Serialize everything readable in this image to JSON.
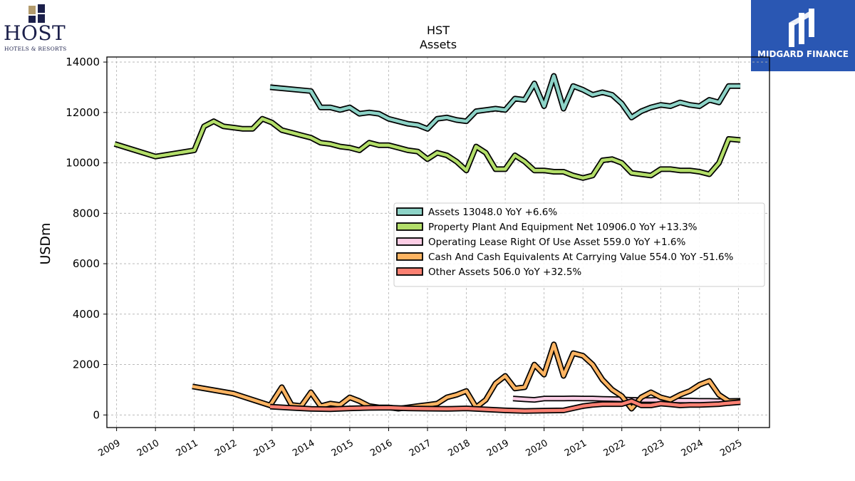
{
  "logos": {
    "left_brand": "HOST",
    "left_tagline": "HOTELS & RESORTS",
    "right_brand": "MIDGARD FINANCE"
  },
  "chart_data": {
    "type": "line",
    "title": "HST",
    "subtitle": "Assets",
    "xlabel": "",
    "ylabel": "USDm",
    "xlim": [
      2008.75,
      2025.8
    ],
    "ylim": [
      -500,
      14200
    ],
    "x_ticks": [
      "2009",
      "2010",
      "2011",
      "2012",
      "2013",
      "2014",
      "2015",
      "2016",
      "2017",
      "2018",
      "2019",
      "2020",
      "2021",
      "2022",
      "2023",
      "2024",
      "2025"
    ],
    "y_ticks": [
      0,
      2000,
      4000,
      6000,
      8000,
      10000,
      12000,
      14000
    ],
    "y_tick_labels": [
      "0",
      "2000",
      "4000",
      "6000",
      "8000",
      "10000",
      "12000",
      "14000"
    ],
    "grid": true,
    "legend_position": "center-right",
    "series": [
      {
        "name": "Assets",
        "legend": "Assets  13048.0 YoY +6.6%",
        "color": "#8dd3c7",
        "points": [
          [
            2012.95,
            13000
          ],
          [
            2014.0,
            12850
          ],
          [
            2014.25,
            12200
          ],
          [
            2014.5,
            12200
          ],
          [
            2014.75,
            12100
          ],
          [
            2015.0,
            12200
          ],
          [
            2015.25,
            11950
          ],
          [
            2015.5,
            12000
          ],
          [
            2015.75,
            11950
          ],
          [
            2016.0,
            11750
          ],
          [
            2016.25,
            11650
          ],
          [
            2016.5,
            11550
          ],
          [
            2016.75,
            11500
          ],
          [
            2017.0,
            11350
          ],
          [
            2017.25,
            11750
          ],
          [
            2017.5,
            11800
          ],
          [
            2017.75,
            11700
          ],
          [
            2018.0,
            11650
          ],
          [
            2018.25,
            12050
          ],
          [
            2018.5,
            12100
          ],
          [
            2018.75,
            12150
          ],
          [
            2019.0,
            12100
          ],
          [
            2019.25,
            12550
          ],
          [
            2019.5,
            12500
          ],
          [
            2019.75,
            13150
          ],
          [
            2020.0,
            12250
          ],
          [
            2020.25,
            13450
          ],
          [
            2020.5,
            12150
          ],
          [
            2020.75,
            13050
          ],
          [
            2021.0,
            12900
          ],
          [
            2021.25,
            12700
          ],
          [
            2021.5,
            12800
          ],
          [
            2021.75,
            12700
          ],
          [
            2022.0,
            12350
          ],
          [
            2022.25,
            11800
          ],
          [
            2022.5,
            12050
          ],
          [
            2022.75,
            12200
          ],
          [
            2023.0,
            12300
          ],
          [
            2023.25,
            12250
          ],
          [
            2023.5,
            12400
          ],
          [
            2023.75,
            12300
          ],
          [
            2024.0,
            12250
          ],
          [
            2024.25,
            12500
          ],
          [
            2024.5,
            12400
          ],
          [
            2024.75,
            13050
          ],
          [
            2025.05,
            13048
          ]
        ]
      },
      {
        "name": "Property Plant And Equipment Net",
        "legend": "Property Plant And Equipment Net  10906.0 YoY +13.3%",
        "color": "#b3de69",
        "points": [
          [
            2008.95,
            10750
          ],
          [
            2010.0,
            10250
          ],
          [
            2011.0,
            10500
          ],
          [
            2011.25,
            11450
          ],
          [
            2011.5,
            11650
          ],
          [
            2011.75,
            11450
          ],
          [
            2012.0,
            11400
          ],
          [
            2012.25,
            11350
          ],
          [
            2012.5,
            11350
          ],
          [
            2012.75,
            11750
          ],
          [
            2013.0,
            11600
          ],
          [
            2013.25,
            11300
          ],
          [
            2013.5,
            11200
          ],
          [
            2013.75,
            11100
          ],
          [
            2014.0,
            11000
          ],
          [
            2014.25,
            10800
          ],
          [
            2014.5,
            10750
          ],
          [
            2014.75,
            10650
          ],
          [
            2015.0,
            10600
          ],
          [
            2015.25,
            10500
          ],
          [
            2015.5,
            10800
          ],
          [
            2015.75,
            10700
          ],
          [
            2016.0,
            10700
          ],
          [
            2016.25,
            10600
          ],
          [
            2016.5,
            10500
          ],
          [
            2016.75,
            10450
          ],
          [
            2017.0,
            10150
          ],
          [
            2017.25,
            10400
          ],
          [
            2017.5,
            10300
          ],
          [
            2017.75,
            10050
          ],
          [
            2018.0,
            9700
          ],
          [
            2018.25,
            10650
          ],
          [
            2018.5,
            10400
          ],
          [
            2018.75,
            9750
          ],
          [
            2019.0,
            9750
          ],
          [
            2019.25,
            10300
          ],
          [
            2019.5,
            10050
          ],
          [
            2019.75,
            9700
          ],
          [
            2020.0,
            9700
          ],
          [
            2020.25,
            9650
          ],
          [
            2020.5,
            9650
          ],
          [
            2020.75,
            9500
          ],
          [
            2021.0,
            9400
          ],
          [
            2021.25,
            9500
          ],
          [
            2021.5,
            10100
          ],
          [
            2021.75,
            10150
          ],
          [
            2022.0,
            10000
          ],
          [
            2022.25,
            9600
          ],
          [
            2022.5,
            9550
          ],
          [
            2022.75,
            9500
          ],
          [
            2023.0,
            9750
          ],
          [
            2023.25,
            9750
          ],
          [
            2023.5,
            9700
          ],
          [
            2023.75,
            9700
          ],
          [
            2024.0,
            9650
          ],
          [
            2024.25,
            9550
          ],
          [
            2024.5,
            10000
          ],
          [
            2024.75,
            10950
          ],
          [
            2025.05,
            10906
          ]
        ]
      },
      {
        "name": "Operating Lease Right Of Use Asset",
        "legend": "Operating Lease Right Of Use Asset  559.0 YoY +1.6%",
        "color": "#fccde5",
        "points": [
          [
            2019.2,
            650
          ],
          [
            2019.5,
            620
          ],
          [
            2019.75,
            600
          ],
          [
            2020.0,
            650
          ],
          [
            2020.25,
            650
          ],
          [
            2020.5,
            650
          ],
          [
            2020.75,
            660
          ],
          [
            2021.0,
            650
          ],
          [
            2021.25,
            650
          ],
          [
            2021.5,
            640
          ],
          [
            2021.75,
            630
          ],
          [
            2022.0,
            620
          ],
          [
            2022.25,
            600
          ],
          [
            2022.5,
            590
          ],
          [
            2022.75,
            590
          ],
          [
            2023.0,
            600
          ],
          [
            2023.25,
            580
          ],
          [
            2023.5,
            570
          ],
          [
            2023.75,
            570
          ],
          [
            2024.0,
            560
          ],
          [
            2024.25,
            560
          ],
          [
            2024.5,
            550
          ],
          [
            2024.75,
            550
          ],
          [
            2025.05,
            559
          ]
        ]
      },
      {
        "name": "Cash And Cash Equivalents At Carrying Value",
        "legend": "Cash And Cash Equivalents At Carrying Value  554.0 YoY -51.6%",
        "color": "#fdb462",
        "points": [
          [
            2010.95,
            1130
          ],
          [
            2012.0,
            850
          ],
          [
            2012.95,
            380
          ],
          [
            2013.25,
            1100
          ],
          [
            2013.5,
            400
          ],
          [
            2013.75,
            350
          ],
          [
            2014.0,
            900
          ],
          [
            2014.25,
            350
          ],
          [
            2014.5,
            450
          ],
          [
            2014.75,
            400
          ],
          [
            2015.0,
            700
          ],
          [
            2015.25,
            550
          ],
          [
            2015.5,
            350
          ],
          [
            2015.75,
            300
          ],
          [
            2016.0,
            300
          ],
          [
            2016.25,
            250
          ],
          [
            2016.5,
            300
          ],
          [
            2016.75,
            350
          ],
          [
            2017.0,
            400
          ],
          [
            2017.25,
            450
          ],
          [
            2017.5,
            700
          ],
          [
            2017.75,
            800
          ],
          [
            2018.0,
            950
          ],
          [
            2018.25,
            300
          ],
          [
            2018.5,
            600
          ],
          [
            2018.75,
            1250
          ],
          [
            2019.0,
            1550
          ],
          [
            2019.25,
            1050
          ],
          [
            2019.5,
            1100
          ],
          [
            2019.75,
            2000
          ],
          [
            2020.0,
            1600
          ],
          [
            2020.25,
            2800
          ],
          [
            2020.5,
            1550
          ],
          [
            2020.75,
            2450
          ],
          [
            2021.0,
            2350
          ],
          [
            2021.25,
            2000
          ],
          [
            2021.5,
            1400
          ],
          [
            2021.75,
            1000
          ],
          [
            2022.0,
            750
          ],
          [
            2022.25,
            250
          ],
          [
            2022.5,
            700
          ],
          [
            2022.75,
            900
          ],
          [
            2023.0,
            700
          ],
          [
            2023.25,
            600
          ],
          [
            2023.5,
            800
          ],
          [
            2023.75,
            950
          ],
          [
            2024.0,
            1200
          ],
          [
            2024.25,
            1350
          ],
          [
            2024.5,
            800
          ],
          [
            2024.75,
            550
          ],
          [
            2025.05,
            554
          ]
        ]
      },
      {
        "name": "Other Assets",
        "legend": "Other Assets  506.0 YoY +32.5%",
        "color": "#fb8072",
        "points": [
          [
            2012.95,
            330
          ],
          [
            2013.5,
            280
          ],
          [
            2014.0,
            240
          ],
          [
            2014.5,
            230
          ],
          [
            2015.0,
            260
          ],
          [
            2015.5,
            280
          ],
          [
            2016.0,
            290
          ],
          [
            2016.5,
            260
          ],
          [
            2017.0,
            250
          ],
          [
            2017.5,
            240
          ],
          [
            2018.0,
            260
          ],
          [
            2018.5,
            220
          ],
          [
            2019.0,
            180
          ],
          [
            2019.5,
            160
          ],
          [
            2020.0,
            170
          ],
          [
            2020.5,
            180
          ],
          [
            2021.0,
            350
          ],
          [
            2021.25,
            400
          ],
          [
            2021.5,
            430
          ],
          [
            2022.0,
            430
          ],
          [
            2022.25,
            550
          ],
          [
            2022.5,
            380
          ],
          [
            2022.75,
            380
          ],
          [
            2023.0,
            450
          ],
          [
            2023.25,
            420
          ],
          [
            2023.5,
            380
          ],
          [
            2023.75,
            400
          ],
          [
            2024.0,
            400
          ],
          [
            2024.5,
            430
          ],
          [
            2024.75,
            470
          ],
          [
            2025.05,
            506
          ]
        ]
      }
    ]
  }
}
